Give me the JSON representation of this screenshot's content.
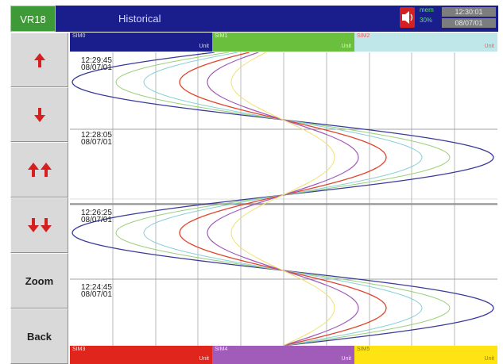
{
  "header": {
    "device_id": "VR18",
    "title": "Historical",
    "memory_label": "mem",
    "memory_percent": "30%",
    "time": "12:30:01",
    "date": "08/07/01"
  },
  "sidebar": {
    "buttons": [
      {
        "name": "scroll-up-button",
        "icon": "arrow-up-icon"
      },
      {
        "name": "scroll-down-button",
        "icon": "arrow-down-icon"
      },
      {
        "name": "page-up-button",
        "icon": "double-arrow-up-icon"
      },
      {
        "name": "page-down-button",
        "icon": "double-arrow-down-icon"
      },
      {
        "name": "zoom-button",
        "label": "Zoom"
      },
      {
        "name": "back-button",
        "label": "Back"
      }
    ]
  },
  "channels_top": [
    {
      "name": "SIM0",
      "unit": "Unit",
      "color": "#1a1d8c",
      "text_color": "#d8d8ff"
    },
    {
      "name": "SIM1",
      "unit": "Unit",
      "color": "#6abf3c",
      "text_color": "#e0f5d0"
    },
    {
      "name": "SIM2",
      "unit": "Unit",
      "color": "#bfe6e9",
      "text_color": "#d86a6a"
    }
  ],
  "channels_bottom": [
    {
      "name": "SIM3",
      "unit": "Unit",
      "color": "#e0251c",
      "text_color": "#ffe0e0"
    },
    {
      "name": "SIM4",
      "unit": "Unit",
      "color": "#a15bb8",
      "text_color": "#f0e0ff"
    },
    {
      "name": "SIM5",
      "unit": "Unit",
      "color": "#ffe313",
      "text_color": "#8a7a10"
    }
  ],
  "time_markers": [
    {
      "time": "12:29:45",
      "date": "08/07/01"
    },
    {
      "time": "12:28:05",
      "date": "08/07/01"
    },
    {
      "time": "12:26:25",
      "date": "08/07/01"
    },
    {
      "time": "12:24:45",
      "date": "08/07/01"
    }
  ],
  "colors": {
    "grid": "#9a9a9a",
    "trace_blue": "#3a3a9a",
    "trace_green": "#9ad07a",
    "trace_cyan": "#8ad0d8",
    "trace_red": "#e0452c",
    "trace_purple": "#a15bb8",
    "trace_yellow": "#f0e070"
  }
}
